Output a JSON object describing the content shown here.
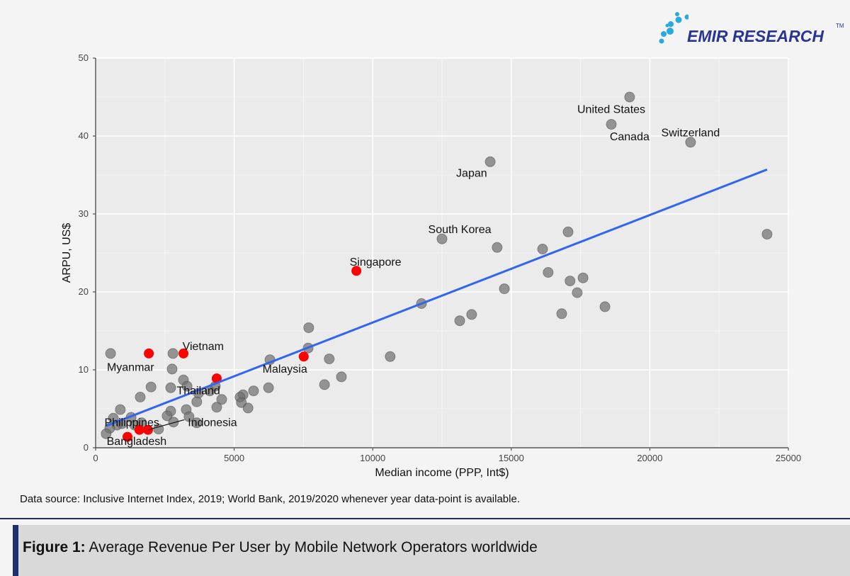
{
  "logo": {
    "text": "EMIR RESEARCH",
    "tm": "TM"
  },
  "source_note": "Data source: Inclusive Internet Index, 2019; World Bank, 2019/2020 whenever year data-point is available.",
  "caption": {
    "label": "Figure 1:",
    "text": " Average Revenue Per User by Mobile Network Operators worldwide"
  },
  "chart_data": {
    "type": "scatter",
    "xlabel": "Median income (PPP, Int$)",
    "ylabel": "ARPU, US$",
    "xlim": [
      0,
      25000
    ],
    "ylim": [
      0,
      50
    ],
    "xticks": [
      0,
      5000,
      10000,
      15000,
      20000,
      25000
    ],
    "yticks": [
      0,
      10,
      20,
      30,
      40,
      50
    ],
    "grid": true,
    "colors": {
      "panel": "#ebebeb",
      "grey_point": "#6e6e6e",
      "red_point": "#ff0000",
      "trend": "#3366ee"
    },
    "trend_line": {
      "x": [
        380,
        24230
      ],
      "y": [
        2.8,
        35.7
      ]
    },
    "grey_points": [
      [
        19270,
        45.0
      ],
      [
        18610,
        41.5
      ],
      [
        21470,
        39.2
      ],
      [
        14240,
        36.7
      ],
      [
        12500,
        26.8
      ],
      [
        14490,
        25.7
      ],
      [
        17050,
        27.7
      ],
      [
        16130,
        25.5
      ],
      [
        16330,
        22.5
      ],
      [
        17590,
        21.8
      ],
      [
        17120,
        21.4
      ],
      [
        17380,
        19.9
      ],
      [
        14750,
        20.4
      ],
      [
        11760,
        18.5
      ],
      [
        18380,
        18.1
      ],
      [
        16820,
        17.2
      ],
      [
        13570,
        17.1
      ],
      [
        13140,
        16.3
      ],
      [
        24230,
        27.4
      ],
      [
        7690,
        15.4
      ],
      [
        7670,
        12.8
      ],
      [
        10630,
        11.7
      ],
      [
        8430,
        11.4
      ],
      [
        8870,
        9.1
      ],
      [
        8260,
        8.1
      ],
      [
        6290,
        11.3
      ],
      [
        6240,
        7.7
      ],
      [
        5700,
        7.3
      ],
      [
        5320,
        6.8
      ],
      [
        5210,
        6.5
      ],
      [
        5260,
        5.8
      ],
      [
        5500,
        5.1
      ],
      [
        540,
        12.1
      ],
      [
        2790,
        12.1
      ],
      [
        2760,
        10.1
      ],
      [
        3170,
        8.7
      ],
      [
        3300,
        7.9
      ],
      [
        2000,
        7.8
      ],
      [
        2710,
        7.7
      ],
      [
        1610,
        6.5
      ],
      [
        3710,
        7.0
      ],
      [
        4120,
        7.3
      ],
      [
        4320,
        7.9
      ],
      [
        3650,
        5.9
      ],
      [
        4550,
        6.2
      ],
      [
        4370,
        5.2
      ],
      [
        3270,
        4.9
      ],
      [
        2710,
        4.7
      ],
      [
        2580,
        4.1
      ],
      [
        2810,
        3.3
      ],
      [
        3370,
        4.0
      ],
      [
        3650,
        3.2
      ],
      [
        890,
        4.9
      ],
      [
        1280,
        3.9
      ],
      [
        640,
        3.8
      ],
      [
        770,
        2.9
      ],
      [
        510,
        2.5
      ],
      [
        950,
        3.1
      ],
      [
        2270,
        2.4
      ],
      [
        1410,
        2.9
      ],
      [
        1660,
        3.2
      ],
      [
        380,
        1.8
      ]
    ],
    "red_points": [
      [
        9410,
        22.7
      ],
      [
        1920,
        12.1
      ],
      [
        3170,
        12.1
      ],
      [
        4370,
        8.9
      ],
      [
        7510,
        11.7
      ],
      [
        1150,
        1.4
      ],
      [
        1580,
        2.3
      ],
      [
        1890,
        2.3
      ]
    ],
    "labels": [
      {
        "text": "United States",
        "x": 18610,
        "y": 43.5
      },
      {
        "text": "Canada",
        "x": 19270,
        "y": 40.0
      },
      {
        "text": "Switzerland",
        "x": 21470,
        "y": 40.5
      },
      {
        "text": "Japan",
        "x": 13570,
        "y": 35.3
      },
      {
        "text": "South Korea",
        "x": 13140,
        "y": 28.1
      },
      {
        "text": "Singapore",
        "x": 10100,
        "y": 23.9
      },
      {
        "text": "Vietnam",
        "x": 3880,
        "y": 13.1
      },
      {
        "text": "Myanmar",
        "x": 1260,
        "y": 10.4
      },
      {
        "text": "Malaysia",
        "x": 6830,
        "y": 10.2
      },
      {
        "text": "Thailand",
        "x": 3710,
        "y": 7.4
      },
      {
        "text": "Philippines",
        "x": 1410,
        "y": 3.3
      },
      {
        "text": "Indonesia",
        "x": 3960,
        "y": 3.3
      },
      {
        "text": "Bangladesh",
        "x": 1480,
        "y": 0.9
      }
    ]
  }
}
